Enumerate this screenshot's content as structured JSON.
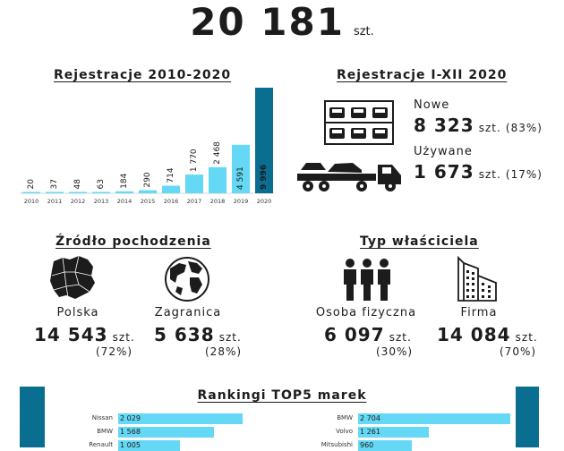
{
  "total": {
    "value": "20 181",
    "unit": "szt."
  },
  "registrations_chart": {
    "title": "Rejestracje 2010-2020"
  },
  "chart_data": [
    {
      "type": "bar",
      "title": "Rejestracje 2010-2020",
      "categories": [
        "2010",
        "2011",
        "2012",
        "2013",
        "2014",
        "2015",
        "2016",
        "2017",
        "2018",
        "2019",
        "2020"
      ],
      "values": [
        20,
        37,
        48,
        63,
        184,
        290,
        714,
        1770,
        2468,
        4591,
        9996
      ],
      "value_labels": [
        "20",
        "37",
        "48",
        "63",
        "184",
        "290",
        "714",
        "1 770",
        "2 468",
        "4 591",
        "9 996"
      ],
      "ylim": [
        0,
        9996
      ],
      "highlight_last": true,
      "colors": {
        "bar": "#64d8f4",
        "highlight": "#0a6e90"
      }
    },
    {
      "type": "bar",
      "title": "Rankingi TOP5 marek",
      "series": [
        {
          "categories": [
            "Nissan",
            "BMW",
            "Renault"
          ],
          "values": [
            2029,
            1568,
            1005
          ],
          "value_labels": [
            "2 029",
            "1 568",
            "1 005"
          ]
        },
        {
          "categories": [
            "BMW",
            "Volvo",
            "Mitsubishi"
          ],
          "values": [
            2704,
            1261,
            960
          ],
          "value_labels": [
            "2 704",
            "1 261",
            "960"
          ]
        }
      ],
      "xlim": [
        0,
        2704
      ]
    }
  ],
  "monthly": {
    "title": "Rejestracje I-XII 2020",
    "new_label": "Nowe",
    "new_value": "8 323",
    "new_unit": "szt.",
    "new_pct": "(83%)",
    "used_label": "Używane",
    "used_value": "1 673",
    "used_unit": "szt.",
    "used_pct": "(17%)"
  },
  "origin": {
    "title": "Źródło pochodzenia",
    "poland_label": "Polska",
    "poland_value": "14 543",
    "poland_unit": "szt.",
    "poland_pct": "(72%)",
    "abroad_label": "Zagranica",
    "abroad_value": "5 638",
    "abroad_unit": "szt.",
    "abroad_pct": "(28%)"
  },
  "owner": {
    "title": "Typ właściciela",
    "person_label": "Osoba fizyczna",
    "person_value": "6 097",
    "person_unit": "szt.",
    "person_pct": "(30%)",
    "company_label": "Firma",
    "company_value": "14 084",
    "company_unit": "szt.",
    "company_pct": "(70%)"
  },
  "ranking": {
    "title": "Rankingi TOP5 marek"
  },
  "colors": {
    "accent_light": "#64d8f4",
    "accent_dark": "#0a6e90",
    "text": "#1c1c1c"
  }
}
